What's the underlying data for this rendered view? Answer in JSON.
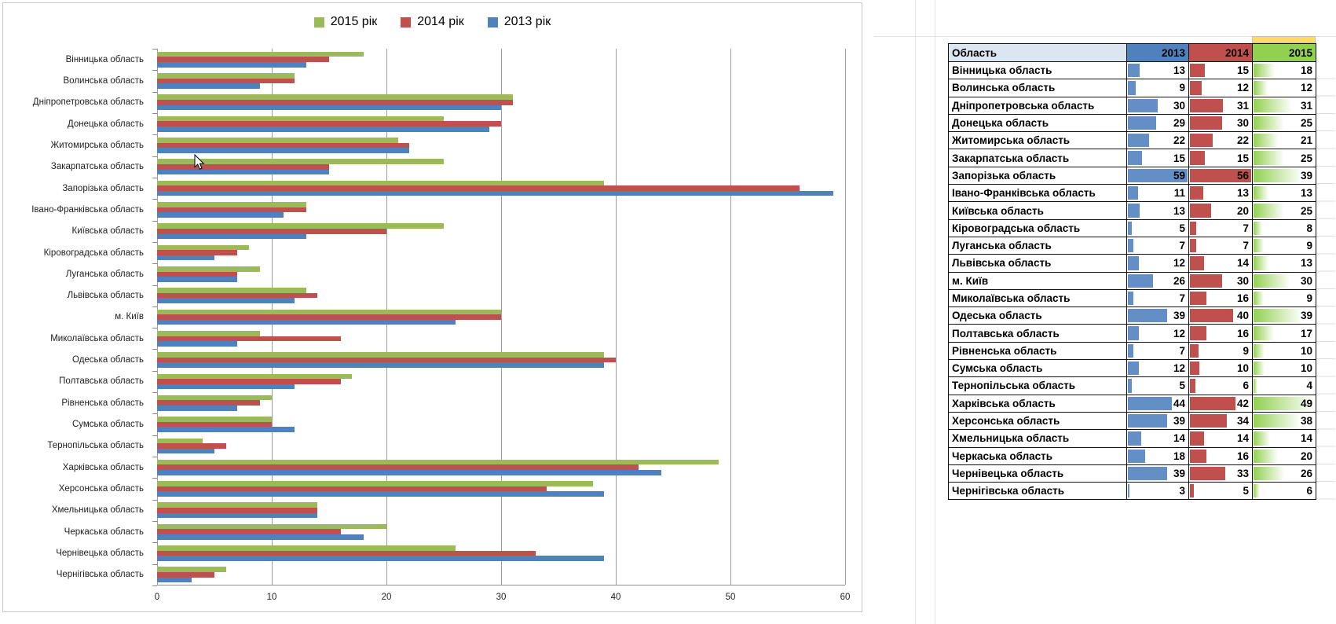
{
  "chart": {
    "legend": [
      {
        "label": "2015 рік",
        "color": "#9BBB59"
      },
      {
        "label": "2014 рік",
        "color": "#C0504D"
      },
      {
        "label": "2013 рік",
        "color": "#4F81BD"
      }
    ]
  },
  "chart_data": {
    "type": "bar",
    "orientation": "horizontal",
    "title": "",
    "xlabel": "",
    "ylabel": "",
    "xlim": [
      0,
      60
    ],
    "xticks": [
      0,
      10,
      20,
      30,
      40,
      50,
      60
    ],
    "grid": true,
    "legend_position": "top center",
    "bar_order_top_to_bottom": [
      "2015 рік",
      "2014 рік",
      "2013 рік"
    ],
    "categories": [
      "Вінницька область",
      "Волинська область",
      "Дніпропетровська  область",
      "Донецька область",
      "Житомирська область",
      "Закарпатська область",
      "Запорізька область",
      "Івано-Франківська область",
      "Київська область",
      "Кіровоградська область",
      "Луганська область",
      "Львівська область",
      "м. Київ",
      "Миколаївська область",
      "Одеська область",
      "Полтавська область",
      "Рівненська область",
      "Сумська область",
      "Тернопільська область",
      "Харківська область",
      "Херсонська область",
      "Хмельницька область",
      "Черкаська область",
      "Чернівецька область",
      "Чернігівська область"
    ],
    "series": [
      {
        "name": "2015 рік",
        "color": "#9BBB59",
        "values": [
          18,
          12,
          31,
          25,
          21,
          25,
          39,
          13,
          25,
          8,
          9,
          13,
          30,
          9,
          39,
          17,
          10,
          10,
          4,
          49,
          38,
          14,
          20,
          26,
          6
        ]
      },
      {
        "name": "2014 рік",
        "color": "#C0504D",
        "values": [
          15,
          12,
          31,
          30,
          22,
          15,
          56,
          13,
          20,
          7,
          7,
          14,
          30,
          16,
          40,
          16,
          9,
          10,
          6,
          42,
          34,
          14,
          16,
          33,
          5
        ]
      },
      {
        "name": "2013 рік",
        "color": "#4F81BD",
        "values": [
          13,
          9,
          30,
          29,
          22,
          15,
          59,
          11,
          13,
          5,
          7,
          12,
          26,
          7,
          39,
          12,
          7,
          12,
          5,
          44,
          39,
          14,
          18,
          39,
          3
        ]
      }
    ]
  },
  "table": {
    "headers": [
      {
        "label": "Область",
        "bg": "#DCE6F1"
      },
      {
        "label": "2013",
        "bg": "#4F81BD"
      },
      {
        "label": "2014",
        "bg": "#C0504D"
      },
      {
        "label": "2015",
        "bg": "#92D050"
      }
    ],
    "databar_colors": {
      "2013": "#638EC6",
      "2014": "#C0504D",
      "2015": "#92D050"
    },
    "rows": [
      [
        "Вінницька область",
        13,
        15,
        18
      ],
      [
        "Волинська область",
        9,
        12,
        12
      ],
      [
        "Дніпропетровська область",
        30,
        31,
        31
      ],
      [
        "Донецька область",
        29,
        30,
        25
      ],
      [
        "Житомирська область",
        22,
        22,
        21
      ],
      [
        "Закарпатська область",
        15,
        15,
        25
      ],
      [
        "Запорізька область",
        59,
        56,
        39
      ],
      [
        "Івано-Франківська область",
        11,
        13,
        13
      ],
      [
        "Київська область",
        13,
        20,
        25
      ],
      [
        "Кіровоградська область",
        5,
        7,
        8
      ],
      [
        "Луганська область",
        7,
        7,
        9
      ],
      [
        "Львівська область",
        12,
        14,
        13
      ],
      [
        "м. Київ",
        26,
        30,
        30
      ],
      [
        "Миколаївська область",
        7,
        16,
        9
      ],
      [
        "Одеська область",
        39,
        40,
        39
      ],
      [
        "Полтавська область",
        12,
        16,
        17
      ],
      [
        "Рівненська область",
        7,
        9,
        10
      ],
      [
        "Сумська область",
        12,
        10,
        10
      ],
      [
        "Тернопільська область",
        5,
        6,
        4
      ],
      [
        "Харківська область",
        44,
        42,
        49
      ],
      [
        "Херсонська область",
        39,
        34,
        38
      ],
      [
        "Хмельницька область",
        14,
        14,
        14
      ],
      [
        "Черкаська область",
        18,
        16,
        20
      ],
      [
        "Чернівецька область",
        39,
        33,
        26
      ],
      [
        "Чернігівська область",
        3,
        5,
        6
      ]
    ]
  },
  "misc": {
    "yellow_marker_color": "#FFDC5F"
  }
}
